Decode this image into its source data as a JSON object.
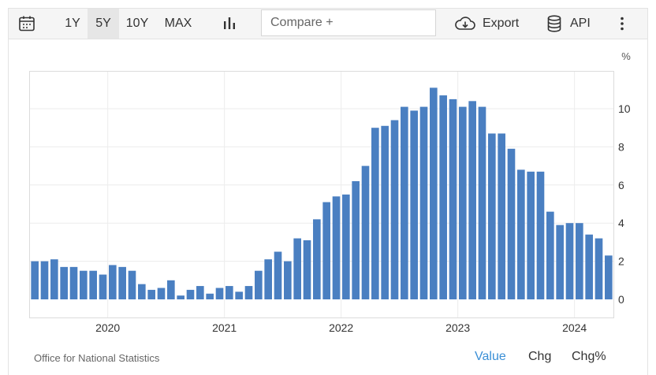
{
  "toolbar": {
    "ranges": [
      "1Y",
      "5Y",
      "10Y",
      "MAX"
    ],
    "active_range": "5Y",
    "compare_placeholder": "Compare +",
    "export_label": "Export",
    "api_label": "API",
    "icons": [
      "calendar-icon",
      "bar-chart-icon",
      "cloud-download-icon",
      "database-icon",
      "more-vertical-icon"
    ]
  },
  "footer": {
    "source": "Office for National Statistics",
    "tabs": [
      "Value",
      "Chg",
      "Chg%"
    ],
    "active_tab": "Value"
  },
  "chart_data": {
    "type": "bar",
    "unit_label": "%",
    "color": "#4a7fc1",
    "x_tick_labels": [
      "2020",
      "2021",
      "2022",
      "2023",
      "2024"
    ],
    "ylim": [
      0,
      12
    ],
    "y_ticks": [
      0,
      2,
      4,
      6,
      8,
      10
    ],
    "grid": true,
    "categories": [
      "2019-05",
      "2019-06",
      "2019-07",
      "2019-08",
      "2019-09",
      "2019-10",
      "2019-11",
      "2019-12",
      "2020-01",
      "2020-02",
      "2020-03",
      "2020-04",
      "2020-05",
      "2020-06",
      "2020-07",
      "2020-08",
      "2020-09",
      "2020-10",
      "2020-11",
      "2020-12",
      "2021-01",
      "2021-02",
      "2021-03",
      "2021-04",
      "2021-05",
      "2021-06",
      "2021-07",
      "2021-08",
      "2021-09",
      "2021-10",
      "2021-11",
      "2021-12",
      "2022-01",
      "2022-02",
      "2022-03",
      "2022-04",
      "2022-05",
      "2022-06",
      "2022-07",
      "2022-08",
      "2022-09",
      "2022-10",
      "2022-11",
      "2022-12",
      "2023-01",
      "2023-02",
      "2023-03",
      "2023-04",
      "2023-05",
      "2023-06",
      "2023-07",
      "2023-08",
      "2023-09",
      "2023-10",
      "2023-11",
      "2023-12",
      "2024-01",
      "2024-02",
      "2024-03",
      "2024-04"
    ],
    "values": [
      2.0,
      2.0,
      2.1,
      1.7,
      1.7,
      1.5,
      1.5,
      1.3,
      1.8,
      1.7,
      1.5,
      0.8,
      0.5,
      0.6,
      1.0,
      0.2,
      0.5,
      0.7,
      0.3,
      0.6,
      0.7,
      0.4,
      0.7,
      1.5,
      2.1,
      2.5,
      2.0,
      3.2,
      3.1,
      4.2,
      5.1,
      5.4,
      5.5,
      6.2,
      7.0,
      9.0,
      9.1,
      9.4,
      10.1,
      9.9,
      10.1,
      11.1,
      10.7,
      10.5,
      10.1,
      10.4,
      10.1,
      8.7,
      8.7,
      7.9,
      6.8,
      6.7,
      6.7,
      4.6,
      3.9,
      4.0,
      4.0,
      3.4,
      3.2,
      2.3
    ]
  }
}
